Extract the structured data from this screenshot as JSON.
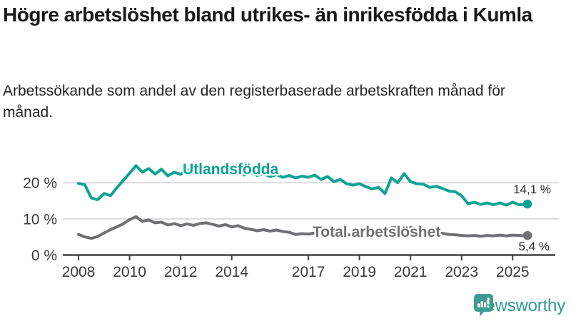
{
  "header": {
    "title": "Högre arbetslöshet bland utrikes- än inrikesfödda i Kumla",
    "subtitle": "Arbetssökande som andel av den registerbaserade arbetskraften månad för månad."
  },
  "chart_data": {
    "type": "line",
    "title": "Högre arbetslöshet bland utrikes- än inrikesfödda i Kumla",
    "xlabel": "",
    "ylabel": "",
    "unit": "%",
    "grid": "horizontal-only",
    "x_range": [
      2008,
      2025.58
    ],
    "ylim": [
      0,
      27
    ],
    "x_ticks": [
      {
        "value": 2008,
        "label": "2008"
      },
      {
        "value": 2010,
        "label": "2010"
      },
      {
        "value": 2012,
        "label": "2012"
      },
      {
        "value": 2014,
        "label": "2014"
      },
      {
        "value": 2017,
        "label": "2017"
      },
      {
        "value": 2019,
        "label": "2019"
      },
      {
        "value": 2021,
        "label": "2021"
      },
      {
        "value": 2023,
        "label": "2023"
      },
      {
        "value": 2025,
        "label": "2025"
      }
    ],
    "y_ticks": [
      {
        "value": 0,
        "label": "0 %"
      },
      {
        "value": 10,
        "label": "10 %"
      },
      {
        "value": 20,
        "label": "20 %"
      }
    ],
    "x": [
      2008,
      2008.25,
      2008.5,
      2008.75,
      2009,
      2009.25,
      2009.5,
      2009.75,
      2010,
      2010.25,
      2010.5,
      2010.75,
      2011,
      2011.25,
      2011.5,
      2011.75,
      2012,
      2012.25,
      2012.5,
      2012.75,
      2013,
      2013.25,
      2013.5,
      2013.75,
      2014,
      2014.25,
      2014.5,
      2014.75,
      2015,
      2015.25,
      2015.5,
      2015.75,
      2016,
      2016.25,
      2016.5,
      2016.75,
      2017,
      2017.25,
      2017.5,
      2017.75,
      2018,
      2018.25,
      2018.5,
      2018.75,
      2019,
      2019.25,
      2019.5,
      2019.75,
      2020,
      2020.25,
      2020.5,
      2020.75,
      2021,
      2021.25,
      2021.5,
      2021.75,
      2022,
      2022.25,
      2022.5,
      2022.75,
      2023,
      2023.25,
      2023.5,
      2023.75,
      2024,
      2024.25,
      2024.5,
      2024.75,
      2025,
      2025.25,
      2025.5,
      2025.58
    ],
    "series": [
      {
        "name": "Utlandsfödda",
        "color": "#0da396",
        "end_value_label": "14,1 %",
        "values": [
          19.8,
          19.4,
          15.8,
          15.3,
          17.0,
          16.4,
          18.6,
          20.6,
          22.6,
          24.7,
          22.9,
          23.9,
          22.4,
          23.7,
          21.9,
          22.9,
          22.3,
          23.6,
          22.7,
          23.3,
          23.9,
          23.2,
          22.5,
          23.1,
          22.6,
          23.0,
          22.1,
          22.7,
          22.0,
          22.5,
          21.7,
          22.2,
          21.5,
          22.0,
          21.3,
          21.8,
          21.5,
          22.1,
          20.9,
          21.7,
          20.3,
          20.9,
          19.7,
          19.3,
          19.7,
          18.9,
          18.3,
          18.7,
          17.0,
          21.3,
          20.0,
          22.5,
          20.3,
          19.7,
          19.6,
          18.7,
          19.0,
          18.4,
          17.7,
          17.5,
          16.4,
          14.2,
          14.6,
          14.0,
          14.4,
          13.9,
          14.4,
          13.8,
          14.6,
          13.9,
          14.0,
          14.1
        ]
      },
      {
        "name": "Total arbetslöshet",
        "color": "#707074",
        "end_value_label": "5,4 %",
        "values": [
          5.7,
          5.0,
          4.6,
          5.1,
          6.1,
          7.0,
          7.8,
          8.6,
          9.8,
          10.6,
          9.3,
          9.7,
          8.9,
          9.1,
          8.3,
          8.7,
          8.1,
          8.6,
          8.2,
          8.7,
          8.9,
          8.5,
          8.0,
          8.4,
          7.8,
          8.1,
          7.4,
          7.1,
          6.7,
          7.0,
          6.6,
          6.9,
          6.5,
          6.3,
          5.7,
          5.9,
          5.8,
          6.1,
          5.7,
          5.9,
          5.6,
          5.8,
          5.5,
          5.7,
          5.9,
          6.0,
          6.1,
          6.3,
          6.5,
          7.5,
          7.7,
          7.9,
          7.6,
          7.2,
          6.8,
          6.5,
          6.3,
          6.0,
          5.7,
          5.6,
          5.4,
          5.3,
          5.4,
          5.2,
          5.4,
          5.3,
          5.5,
          5.3,
          5.5,
          5.4,
          5.3,
          5.4
        ]
      }
    ],
    "colors": {
      "grid": "#d9d9d9",
      "axis": "#404040",
      "annotation_text": "#2b2b2b"
    }
  },
  "footer": {
    "brand": "Newsworthy",
    "brand_color": "#2e9a93",
    "logo_icon": "bar-chart-speech-bubble"
  }
}
